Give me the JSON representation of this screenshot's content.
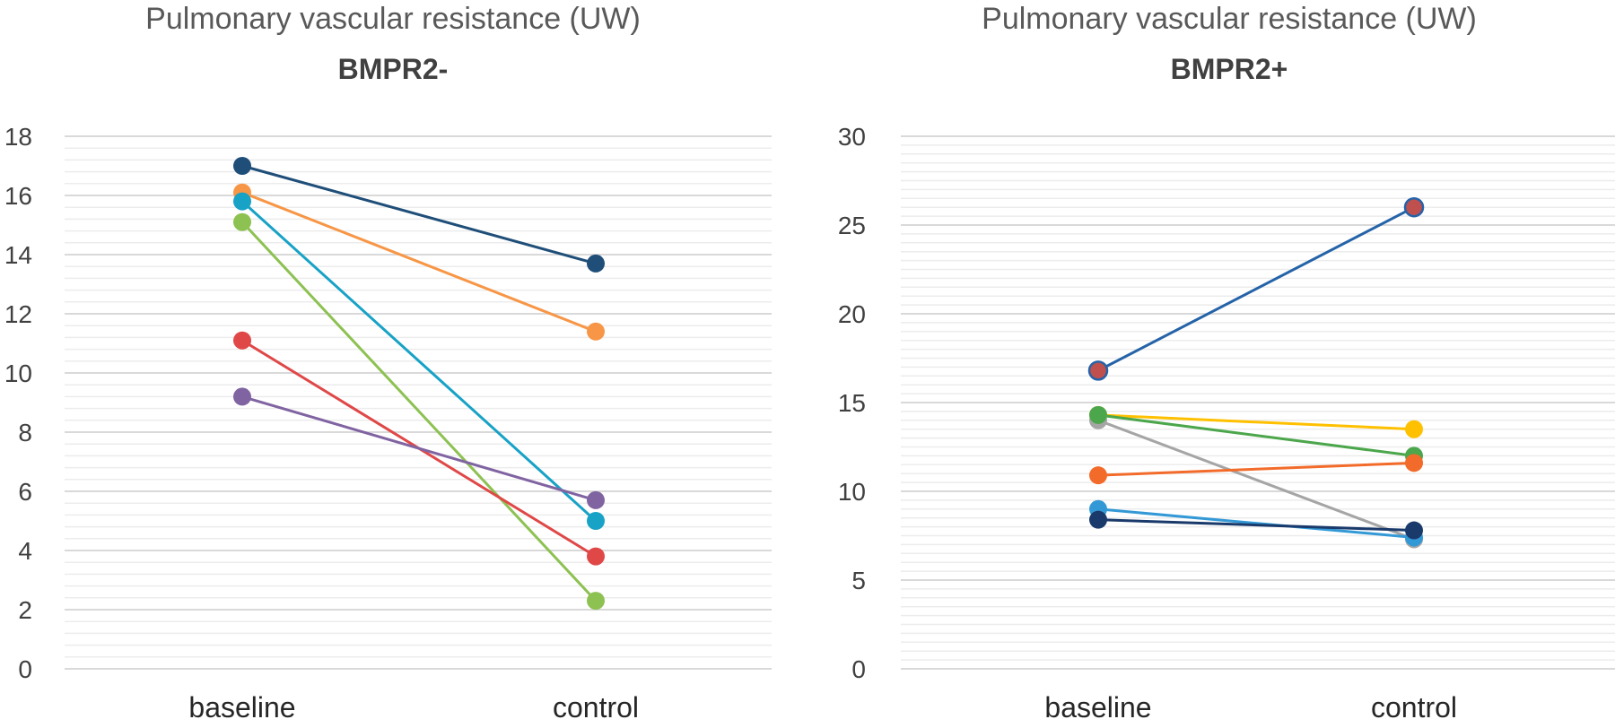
{
  "chart_data": [
    {
      "type": "line",
      "title": "Pulmonary vascular resistance (UW)",
      "subtitle": "BMPR2-",
      "categories": [
        "baseline",
        "control"
      ],
      "ylim": [
        0,
        18
      ],
      "yticks": [
        "0",
        "2",
        "4",
        "6",
        "8",
        "10",
        "12",
        "14",
        "16",
        "18"
      ],
      "grid": true,
      "series": [
        {
          "values": [
            17.0,
            13.7
          ],
          "color": "#1f4e79"
        },
        {
          "values": [
            16.1,
            11.4
          ],
          "color": "#f79646"
        },
        {
          "values": [
            15.8,
            5.0
          ],
          "color": "#17a2c6"
        },
        {
          "values": [
            15.1,
            2.3
          ],
          "color": "#8dc152"
        },
        {
          "values": [
            11.1,
            3.8
          ],
          "color": "#e04848"
        },
        {
          "values": [
            9.2,
            5.7
          ],
          "color": "#8064a2"
        }
      ]
    },
    {
      "type": "line",
      "title": "Pulmonary vascular resistance (UW)",
      "subtitle": "BMPR2+",
      "categories": [
        "baseline",
        "control"
      ],
      "ylim": [
        0,
        30
      ],
      "yticks": [
        "0",
        "5",
        "10",
        "15",
        "20",
        "25",
        "30"
      ],
      "grid": true,
      "series": [
        {
          "values": [
            16.8,
            26.0
          ],
          "color": "#2563a8",
          "marker": "#c0504d"
        },
        {
          "values": [
            14.3,
            13.5
          ],
          "color": "#ffc000"
        },
        {
          "values": [
            14.0,
            7.3
          ],
          "color": "#a5a5a5"
        },
        {
          "values": [
            14.3,
            12.0
          ],
          "color": "#4ca64c"
        },
        {
          "values": [
            10.9,
            11.6
          ],
          "color": "#f26b2a"
        },
        {
          "values": [
            9.0,
            7.4
          ],
          "color": "#3399d6"
        },
        {
          "values": [
            8.4,
            7.8
          ],
          "color": "#1a3a6b"
        }
      ]
    }
  ]
}
